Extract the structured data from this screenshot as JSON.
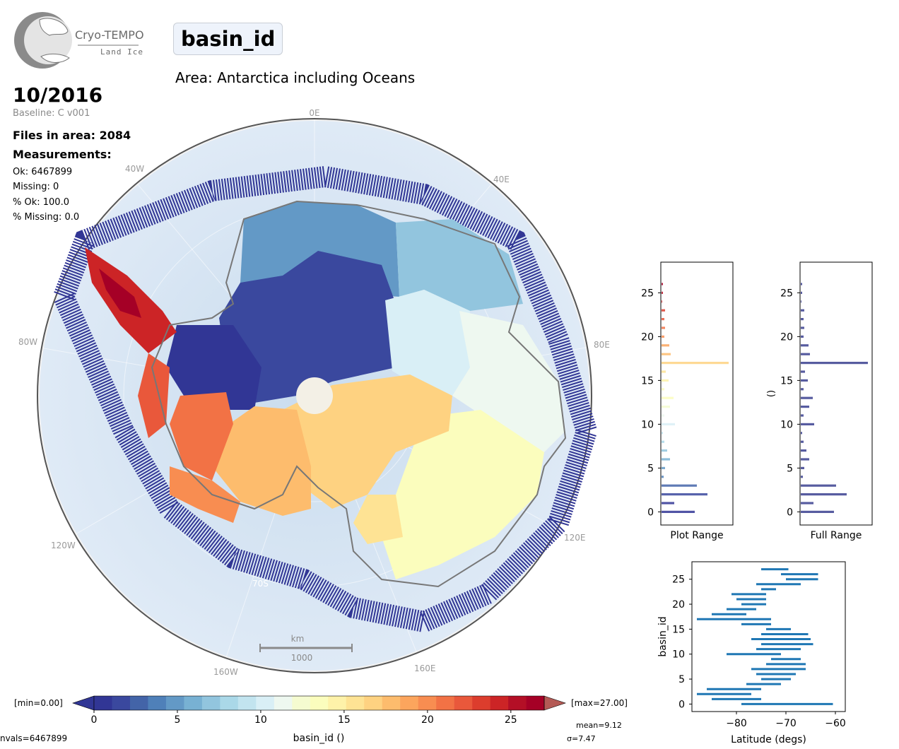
{
  "logo": {
    "title": "Cryo-TEMPO",
    "subtitle": "Land Ice"
  },
  "header": {
    "variable_name": "basin_id",
    "area_title": "Area: Antarctica including Oceans",
    "date": "10/2016",
    "baseline": "Baseline: C v001"
  },
  "stats": {
    "files_in_area": "Files in area: 2084",
    "measurements_label": "Measurements:",
    "ok": "Ok: 6467899",
    "missing": "Missing: 0",
    "pct_ok": "% Ok: 100.0",
    "pct_missing": "% Missing: 0.0"
  },
  "map": {
    "longitude_labels": [
      "0E",
      "40E",
      "80E",
      "120E",
      "160E",
      "160W",
      "120W",
      "80W",
      "40W"
    ],
    "latitude_label": "70S",
    "scale_bar": {
      "unit": "km",
      "length_label": "1000"
    }
  },
  "colorbar": {
    "min_label": "[min=0.00]",
    "max_label": "[max=27.00]",
    "ticks": [
      "0",
      "5",
      "10",
      "15",
      "20",
      "25"
    ],
    "label": "basin_id ()",
    "nvals": "nvals=6467899",
    "mean": "mean=9.12",
    "sigma": "σ=7.47",
    "colors": [
      "#313695",
      "#3a489e",
      "#4364a8",
      "#4f80b9",
      "#6399c6",
      "#78b1d3",
      "#92c5de",
      "#aad8e8",
      "#c2e4ef",
      "#d9eff6",
      "#eef8f0",
      "#f5fbd0",
      "#fbfdbd",
      "#fef2a9",
      "#fee394",
      "#fed281",
      "#fdbc6d",
      "#fca55d",
      "#f88d51",
      "#f27245",
      "#e9583b",
      "#dc3d2d",
      "#cc2426",
      "#b40f26",
      "#a50026"
    ]
  },
  "chart_data": [
    {
      "type": "bar",
      "orientation": "horizontal",
      "title": "",
      "xlabel": "Plot Range",
      "ylabel": "",
      "ylim": [
        -1.5,
        28.5
      ],
      "y_ticks": [
        "0",
        "5",
        "10",
        "15",
        "20",
        "25"
      ],
      "categories": [
        0,
        1,
        2,
        3,
        4,
        5,
        6,
        7,
        8,
        9,
        10,
        11,
        12,
        13,
        14,
        15,
        16,
        17,
        18,
        19,
        20,
        21,
        22,
        23,
        24,
        25,
        26,
        27
      ],
      "values": [
        0.47,
        0.18,
        0.65,
        0.5,
        0.03,
        0.05,
        0.12,
        0.08,
        0.04,
        0.02,
        0.19,
        0.04,
        0.12,
        0.17,
        0.04,
        0.1,
        0.06,
        0.95,
        0.13,
        0.11,
        0.04,
        0.05,
        0.04,
        0.05,
        0.01,
        0.02,
        0.02,
        0.0
      ]
    },
    {
      "type": "bar",
      "orientation": "horizontal",
      "title": "",
      "xlabel": "Full Range",
      "ylabel": "()",
      "ylim": [
        -1.5,
        28.5
      ],
      "y_ticks": [
        "0",
        "5",
        "10",
        "15",
        "20",
        "25"
      ],
      "categories": [
        0,
        1,
        2,
        3,
        4,
        5,
        6,
        7,
        8,
        9,
        10,
        11,
        12,
        13,
        14,
        15,
        16,
        17,
        18,
        19,
        20,
        21,
        22,
        23,
        24,
        25,
        26,
        27
      ],
      "values": [
        0.47,
        0.18,
        0.65,
        0.5,
        0.03,
        0.05,
        0.12,
        0.08,
        0.04,
        0.02,
        0.19,
        0.04,
        0.12,
        0.17,
        0.04,
        0.1,
        0.06,
        0.95,
        0.13,
        0.11,
        0.04,
        0.05,
        0.04,
        0.05,
        0.01,
        0.02,
        0.02,
        0.0
      ]
    },
    {
      "type": "range",
      "title": "",
      "xlabel": "Latitude (degs)",
      "ylabel": "basin_id",
      "xlim": [
        -89,
        -58
      ],
      "ylim": [
        -1.5,
        28.5
      ],
      "x_ticks": [
        "−80",
        "−70",
        "−60"
      ],
      "y_ticks": [
        "0",
        "5",
        "10",
        "15",
        "20",
        "25"
      ],
      "ranges": [
        {
          "id": 0,
          "lat_min": -79,
          "lat_max": -60.5
        },
        {
          "id": 1,
          "lat_min": -85,
          "lat_max": -75
        },
        {
          "id": 2,
          "lat_min": -88,
          "lat_max": -77
        },
        {
          "id": 3,
          "lat_min": -86,
          "lat_max": -75
        },
        {
          "id": 4,
          "lat_min": -78,
          "lat_max": -71
        },
        {
          "id": 5,
          "lat_min": -75,
          "lat_max": -69
        },
        {
          "id": 6,
          "lat_min": -76,
          "lat_max": -68
        },
        {
          "id": 7,
          "lat_min": -77,
          "lat_max": -66
        },
        {
          "id": 8,
          "lat_min": -74,
          "lat_max": -66
        },
        {
          "id": 9,
          "lat_min": -73,
          "lat_max": -67
        },
        {
          "id": 10,
          "lat_min": -82,
          "lat_max": -71
        },
        {
          "id": 11,
          "lat_min": -76,
          "lat_max": -67
        },
        {
          "id": 12,
          "lat_min": -75,
          "lat_max": -64.5
        },
        {
          "id": 13,
          "lat_min": -77,
          "lat_max": -65
        },
        {
          "id": 14,
          "lat_min": -75,
          "lat_max": -65.5
        },
        {
          "id": 15,
          "lat_min": -74,
          "lat_max": -69
        },
        {
          "id": 16,
          "lat_min": -79,
          "lat_max": -73
        },
        {
          "id": 17,
          "lat_min": -88,
          "lat_max": -73
        },
        {
          "id": 18,
          "lat_min": -85,
          "lat_max": -78
        },
        {
          "id": 19,
          "lat_min": -82,
          "lat_max": -76
        },
        {
          "id": 20,
          "lat_min": -79,
          "lat_max": -74
        },
        {
          "id": 21,
          "lat_min": -80,
          "lat_max": -74
        },
        {
          "id": 22,
          "lat_min": -81,
          "lat_max": -74
        },
        {
          "id": 23,
          "lat_min": -75,
          "lat_max": -72
        },
        {
          "id": 24,
          "lat_min": -76,
          "lat_max": -67
        },
        {
          "id": 25,
          "lat_min": -70,
          "lat_max": -63.5
        },
        {
          "id": 26,
          "lat_min": -71,
          "lat_max": -63.5
        },
        {
          "id": 27,
          "lat_min": -75,
          "lat_max": -69.5
        }
      ]
    }
  ]
}
